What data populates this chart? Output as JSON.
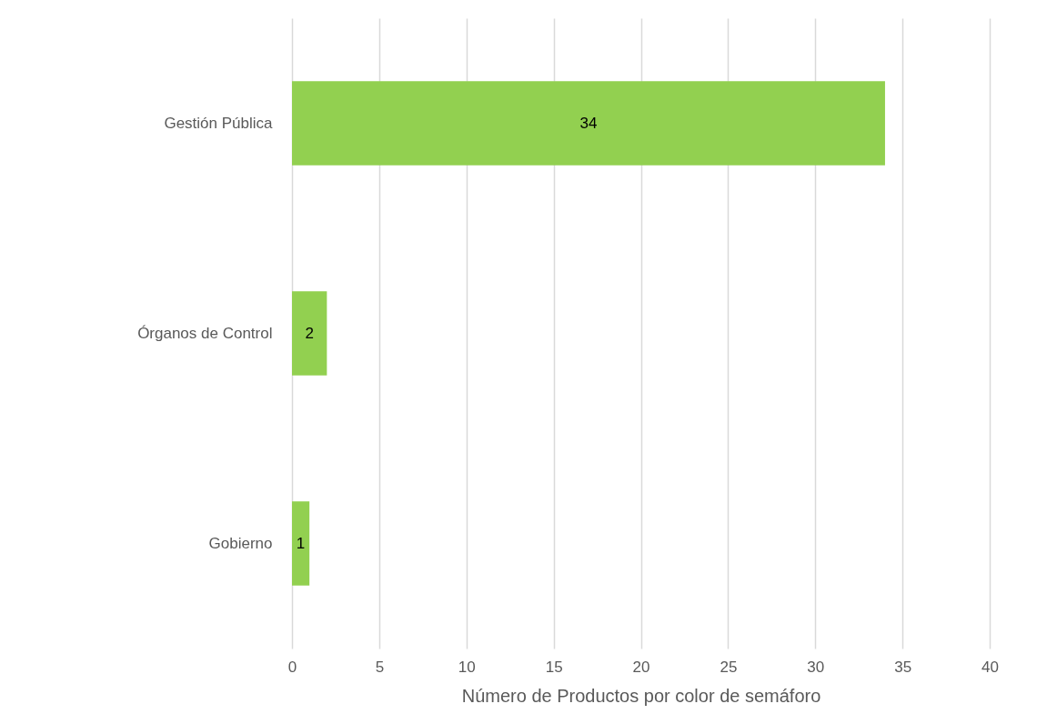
{
  "chart_data": {
    "type": "bar",
    "orientation": "horizontal",
    "xlabel": "Número de Productos por color de semáforo",
    "categories": [
      "Gestión Pública",
      "Órganos de Control",
      "Gobierno"
    ],
    "values": [
      34,
      2,
      1
    ],
    "color": "#92d050",
    "xlim": [
      0,
      40
    ],
    "xticks": [
      0,
      5,
      10,
      15,
      20,
      25,
      30,
      35,
      40
    ],
    "grid": "x",
    "data_labels": true
  }
}
